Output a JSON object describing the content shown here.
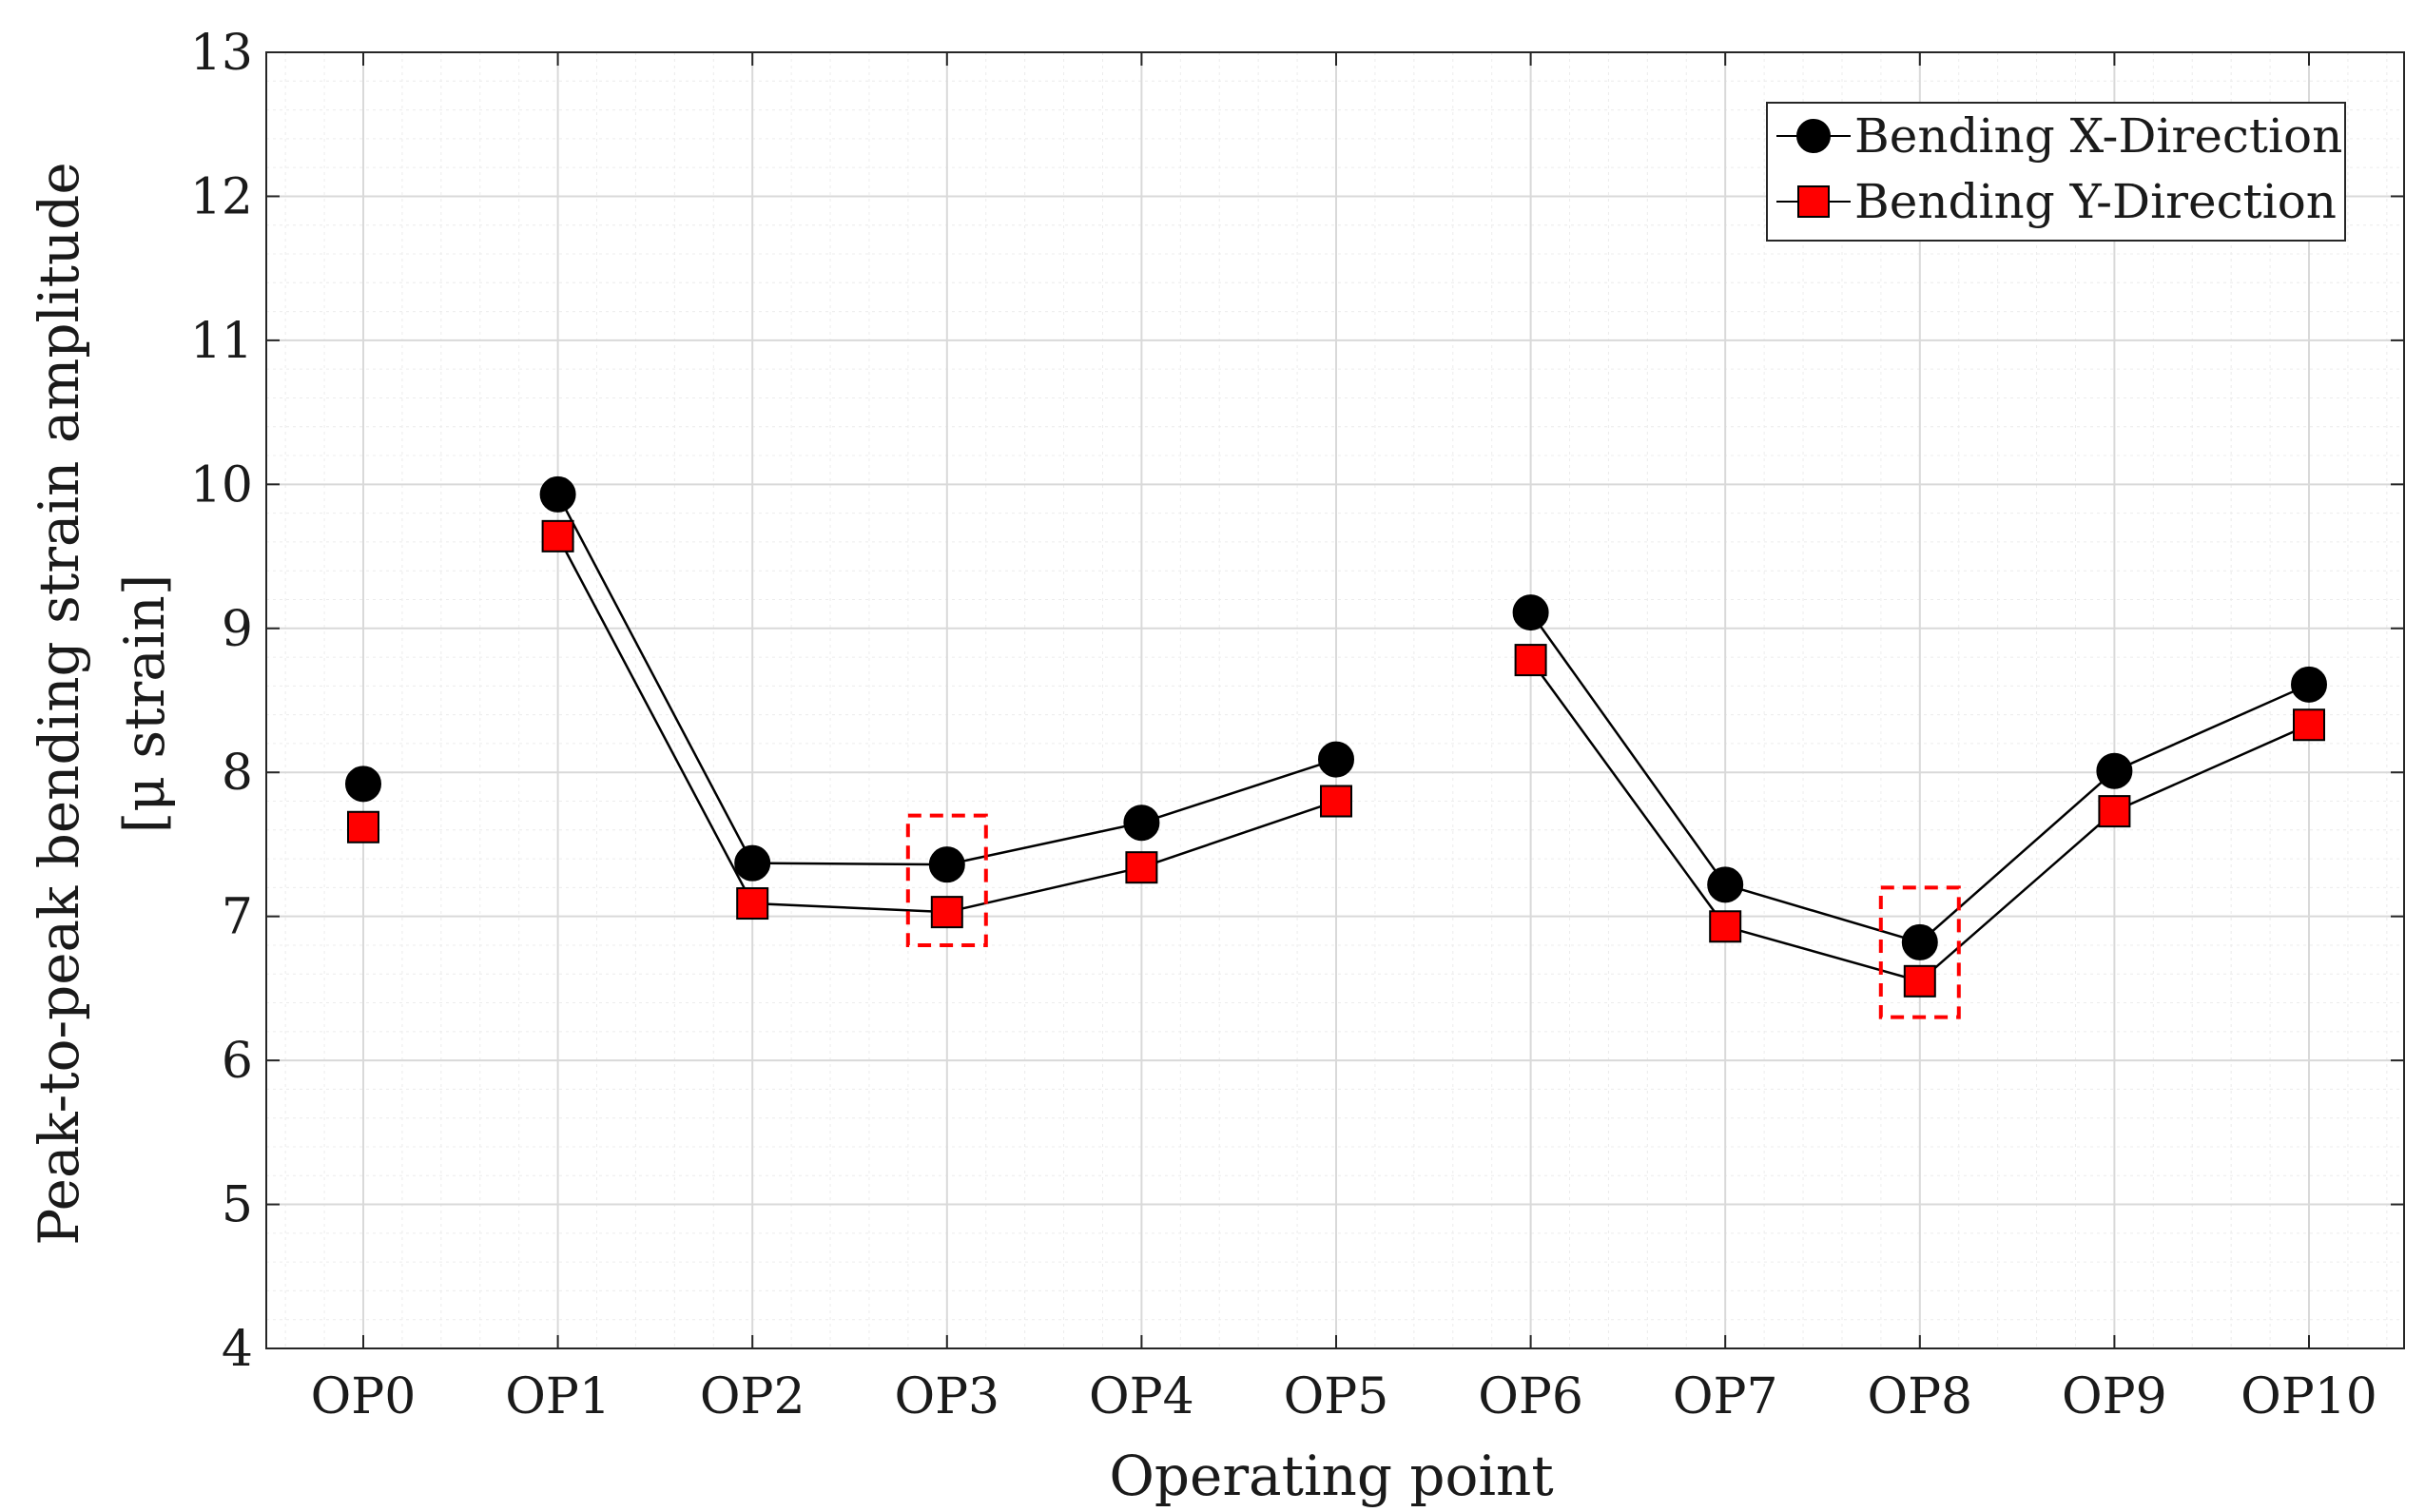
{
  "colors": {
    "x_marker": "#000000",
    "y_marker": "#ff0000",
    "line": "#000000",
    "highlight": "#ff0000",
    "grid_major": "#d9d9d9",
    "grid_minor": "#ececec"
  },
  "chart_data": {
    "type": "line",
    "xlabel": "Operating point",
    "ylabel_line1": "Peak-to-peak bending strain amplitude",
    "ylabel_line2": "[μ strain]",
    "categories": [
      "OP0",
      "OP1",
      "OP2",
      "OP3",
      "OP4",
      "OP5",
      "OP6",
      "OP7",
      "OP8",
      "OP9",
      "OP10"
    ],
    "ylim": [
      4,
      13
    ],
    "yticks": [
      4,
      5,
      6,
      7,
      8,
      9,
      10,
      11,
      12,
      13
    ],
    "grid": true,
    "legend_position": "top-right",
    "line_segments": [
      [
        1,
        5
      ],
      [
        6,
        10
      ]
    ],
    "series": [
      {
        "name": "Bending X-Direction",
        "marker": "circle",
        "values": [
          7.92,
          9.93,
          7.37,
          7.36,
          7.65,
          8.09,
          9.11,
          7.22,
          6.82,
          8.01,
          8.61
        ]
      },
      {
        "name": "Bending Y-Direction",
        "marker": "square",
        "values": [
          7.62,
          9.64,
          7.09,
          7.03,
          7.34,
          7.8,
          8.78,
          6.93,
          6.55,
          7.73,
          8.33
        ]
      }
    ],
    "highlights": [
      {
        "category": "OP3",
        "ymin": 6.8,
        "ymax": 7.7
      },
      {
        "category": "OP8",
        "ymin": 6.3,
        "ymax": 7.2
      }
    ]
  }
}
